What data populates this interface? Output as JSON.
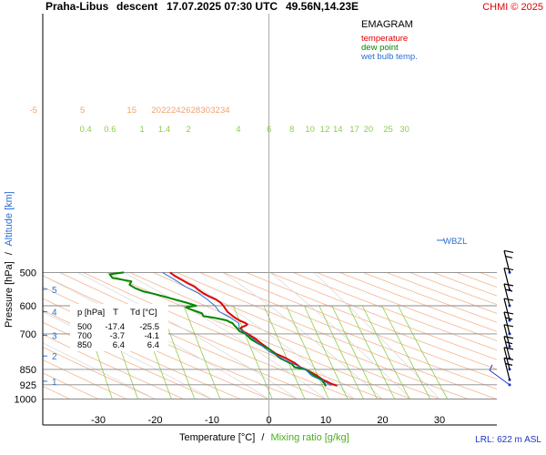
{
  "header": {
    "station": "Praha-Libus",
    "mode": "descent",
    "datetime": "17.07.2025 07:30 UTC",
    "coords": "49.56N,14.23E",
    "copyright": "CHMI © 2025"
  },
  "legend": {
    "title": "EMAGRAM",
    "items": [
      {
        "label": "temperature",
        "color": "#e00000"
      },
      {
        "label": "dew point",
        "color": "#008800"
      },
      {
        "label": "wet bulb temp.",
        "color": "#2a6fd6"
      }
    ]
  },
  "axes": {
    "ylabel_pressure": "Pressure [hPa]",
    "ylabel_sep": "/",
    "ylabel_altitude": "Altitude [km]",
    "xlabel_temp": "Temperature [°C]",
    "xlabel_sep": "/",
    "xlabel_mix": "Mixing ratio [g/kg]",
    "footer": "LRL: 622 m ASL",
    "wbzl": "WBZL"
  },
  "table": {
    "header": [
      "p [hPa]",
      "T",
      "Td [°C]"
    ],
    "rows": [
      [
        "500",
        "-17.4",
        "-25.5"
      ],
      [
        "700",
        "-3.7",
        "-4.1"
      ],
      [
        "850",
        "6.4",
        "6.4"
      ]
    ]
  },
  "chart_data": {
    "type": "line",
    "title": "EMAGRAM",
    "xlabel": "Temperature [°C] / Mixing ratio [g/kg]",
    "ylabel": "Pressure [hPa] / Altitude [km]",
    "xlim": [
      -40,
      38
    ],
    "ylim": [
      1000,
      500
    ],
    "y_scale": "log",
    "x_ticks": [
      -30,
      -20,
      -10,
      0,
      10,
      20,
      30
    ],
    "p_ticks": [
      500,
      600,
      700,
      850,
      925,
      1000
    ],
    "alt_ticks": [
      {
        "km": 1,
        "p": 907
      },
      {
        "km": 2,
        "p": 790
      },
      {
        "km": 3,
        "p": 705
      },
      {
        "km": 4,
        "p": 620
      },
      {
        "km": 5,
        "p": 548
      }
    ],
    "theta_labels": [
      -5,
      5,
      15,
      20,
      22,
      24,
      26,
      28,
      30,
      32,
      34
    ],
    "mixing_ratio_labels": [
      "0.4",
      "0.6",
      "1",
      "1.4",
      "2",
      "4",
      "6",
      "8",
      "10",
      "12",
      "14",
      "17",
      "20",
      "25",
      "30"
    ],
    "series": [
      {
        "name": "temperature",
        "color": "#e00000",
        "points": [
          [
            12,
            930
          ],
          [
            11,
            920
          ],
          [
            10.3,
            910
          ],
          [
            9.5,
            900
          ],
          [
            8.5,
            880
          ],
          [
            6.4,
            850
          ],
          [
            5.5,
            840
          ],
          [
            4.5,
            820
          ],
          [
            3,
            800
          ],
          [
            1.2,
            780
          ],
          [
            0,
            760
          ],
          [
            -1.2,
            740
          ],
          [
            -2.3,
            720
          ],
          [
            -3.7,
            700
          ],
          [
            -4.6,
            690
          ],
          [
            -5,
            680
          ],
          [
            -4.8,
            675
          ],
          [
            -4.2,
            670
          ],
          [
            -3.8,
            665
          ],
          [
            -4.1,
            660
          ],
          [
            -5.2,
            650
          ],
          [
            -6,
            640
          ],
          [
            -7.3,
            620
          ],
          [
            -8,
            600
          ],
          [
            -8.5,
            590
          ],
          [
            -9.3,
            580
          ],
          [
            -10.5,
            570
          ],
          [
            -11.5,
            560
          ],
          [
            -12.4,
            550
          ],
          [
            -13.1,
            540
          ],
          [
            -14.3,
            530
          ],
          [
            -15.4,
            520
          ],
          [
            -16.5,
            510
          ],
          [
            -17.4,
            500
          ]
        ]
      },
      {
        "name": "dew point",
        "color": "#008800",
        "points": [
          [
            10,
            932
          ],
          [
            9.8,
            920
          ],
          [
            9.5,
            910
          ],
          [
            9.3,
            900
          ],
          [
            8,
            880
          ],
          [
            6.4,
            850
          ],
          [
            4.5,
            840
          ],
          [
            4,
            825
          ],
          [
            2,
            800
          ],
          [
            1,
            780
          ],
          [
            0,
            760
          ],
          [
            -1.7,
            740
          ],
          [
            -3.2,
            720
          ],
          [
            -4.1,
            700
          ],
          [
            -4.6,
            695
          ],
          [
            -5.2,
            690
          ],
          [
            -5.5,
            680
          ],
          [
            -6,
            670
          ],
          [
            -6.4,
            660
          ],
          [
            -7,
            655
          ],
          [
            -7.4,
            650
          ],
          [
            -8.6,
            645
          ],
          [
            -9.8,
            640
          ],
          [
            -11.5,
            635
          ],
          [
            -11.8,
            625
          ],
          [
            -13.3,
            615
          ],
          [
            -14,
            610
          ],
          [
            -14.6,
            605
          ],
          [
            -12.8,
            600
          ],
          [
            -14.5,
            590
          ],
          [
            -16.5,
            580
          ],
          [
            -18.5,
            570
          ],
          [
            -20.7,
            560
          ],
          [
            -22,
            555
          ],
          [
            -23.5,
            545
          ],
          [
            -24.5,
            535
          ],
          [
            -24.2,
            525
          ],
          [
            -27.5,
            515
          ],
          [
            -28,
            505
          ],
          [
            -25.5,
            500
          ]
        ]
      },
      {
        "name": "wet bulb temp.",
        "color": "#2a6fd6",
        "points": [
          [
            11,
            930
          ],
          [
            9.8,
            910
          ],
          [
            7.5,
            880
          ],
          [
            6.4,
            850
          ],
          [
            3,
            810
          ],
          [
            0,
            770
          ],
          [
            -3.9,
            700
          ],
          [
            -5.2,
            680
          ],
          [
            -5.3,
            660
          ],
          [
            -6.8,
            640
          ],
          [
            -8.7,
            620
          ],
          [
            -9.5,
            600
          ],
          [
            -10.8,
            580
          ],
          [
            -12.4,
            560
          ],
          [
            -14.7,
            540
          ],
          [
            -16.6,
            520
          ],
          [
            -18.7,
            500
          ]
        ]
      }
    ],
    "wind_barbs_hpa": [
      500,
      550,
      600,
      650,
      700,
      750,
      800,
      850,
      900,
      925
    ]
  }
}
